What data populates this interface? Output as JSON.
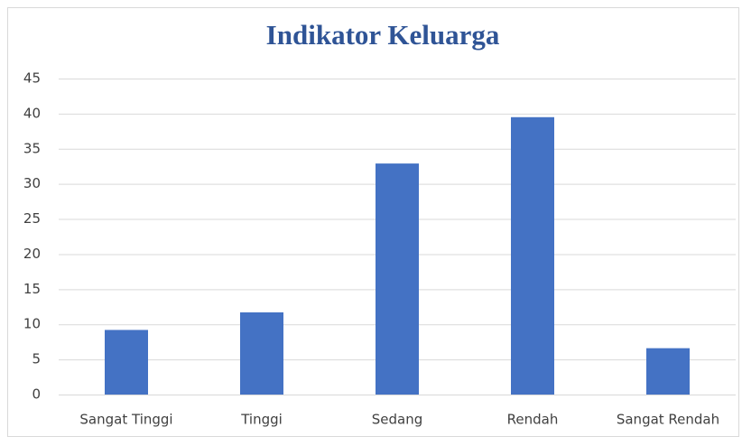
{
  "chart_data": {
    "type": "bar",
    "title": "Indikator Keluarga",
    "categories": [
      "Sangat Tinggi",
      "Tinggi",
      "Sedang",
      "Rendah",
      "Sangat Rendah"
    ],
    "values": [
      9.2,
      11.7,
      32.9,
      39.5,
      6.6
    ],
    "color": "#4472c4",
    "ylim": [
      0,
      45
    ],
    "yticks": [
      0,
      5,
      10,
      15,
      20,
      25,
      30,
      35,
      40,
      45
    ],
    "grid": true
  }
}
